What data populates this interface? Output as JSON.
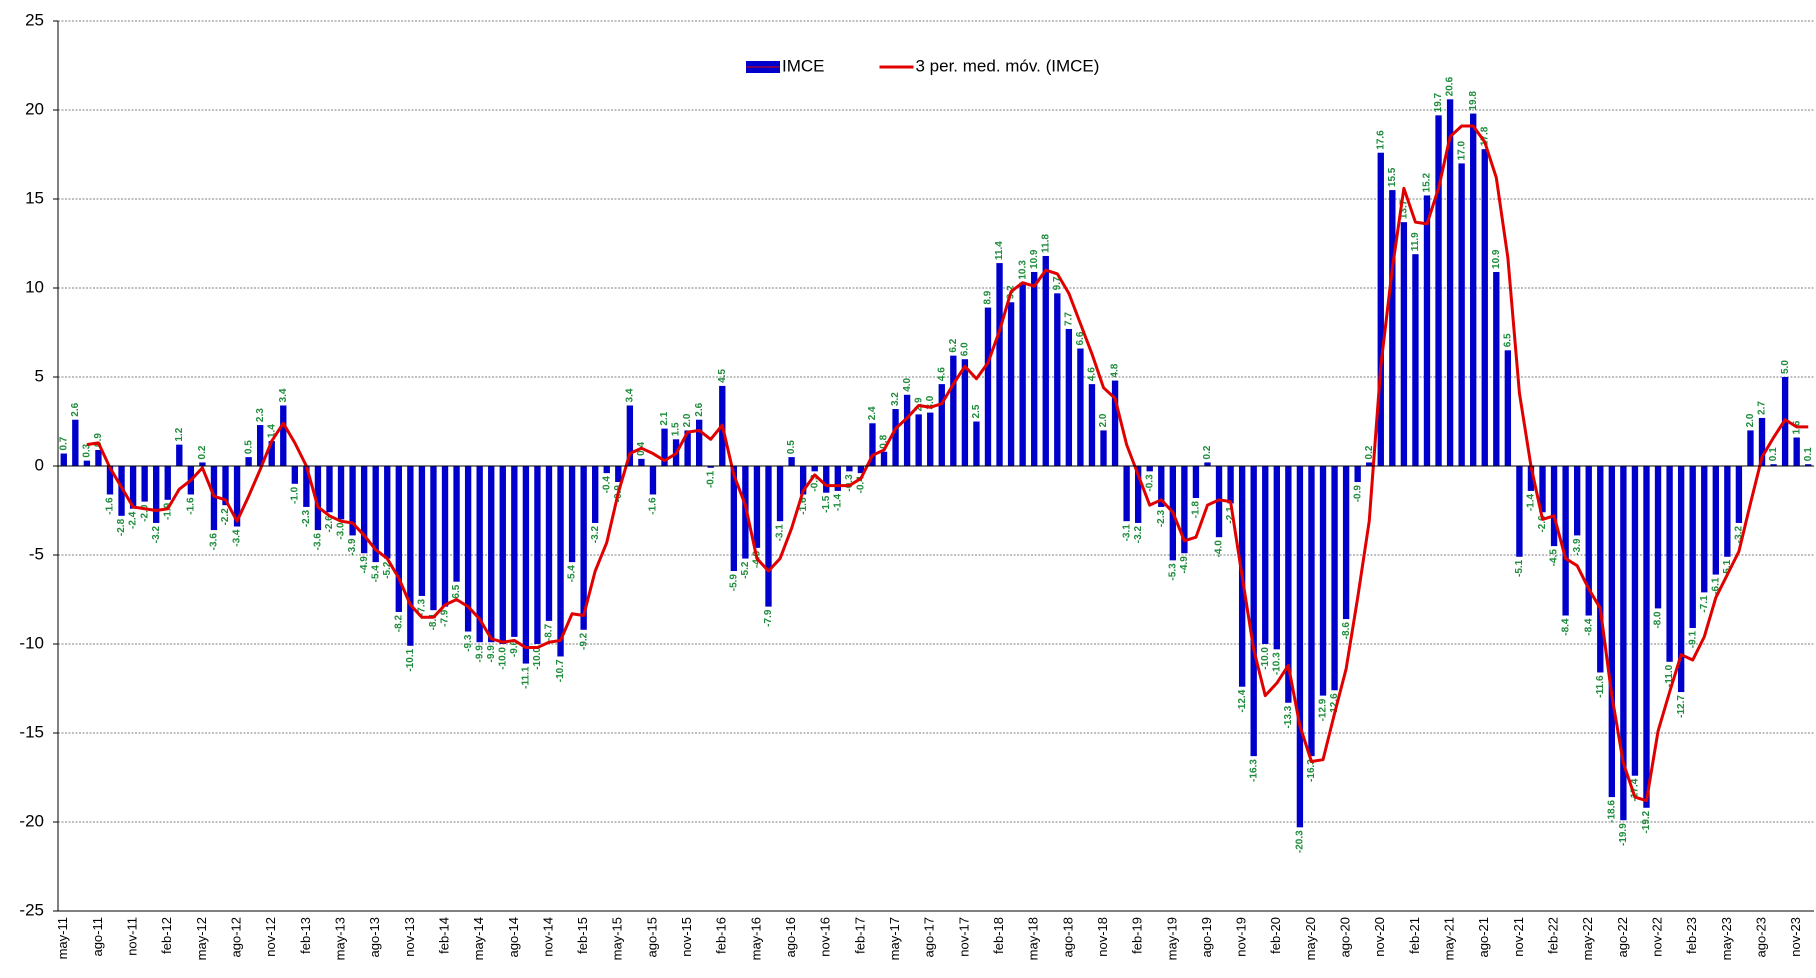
{
  "chart_data": {
    "type": "bar",
    "categories": [
      "may-11",
      null,
      null,
      "ago-11",
      null,
      null,
      "nov-11",
      null,
      null,
      "feb-12",
      null,
      null,
      "may-12",
      null,
      null,
      "ago-12",
      null,
      null,
      "nov-12",
      null,
      null,
      "feb-13",
      null,
      null,
      "may-13",
      null,
      null,
      "ago-13",
      null,
      null,
      "nov-13",
      null,
      null,
      "feb-14",
      null,
      null,
      "may-14",
      null,
      null,
      "ago-14",
      null,
      null,
      "nov-14",
      null,
      null,
      "feb-15",
      null,
      null,
      "may-15",
      null,
      null,
      "ago-15",
      null,
      null,
      "nov-15",
      null,
      null,
      "feb-16",
      null,
      null,
      "may-16",
      null,
      null,
      "ago-16",
      null,
      null,
      "nov-16",
      null,
      null,
      "feb-17",
      null,
      null,
      "may-17",
      null,
      null,
      "ago-17",
      null,
      null,
      "nov-17",
      null,
      null,
      "feb-18",
      null,
      null,
      "may-18",
      null,
      null,
      "ago-18",
      null,
      null,
      "nov-18",
      null,
      null,
      "feb-19",
      null,
      null,
      "may-19",
      null,
      null,
      "ago-19",
      null,
      null,
      "nov-19",
      null,
      null,
      "feb-20",
      null,
      null,
      "may-20",
      null,
      null,
      "ago-20",
      null,
      null,
      "nov-20",
      null,
      null,
      "feb-21",
      null,
      null,
      "may-21",
      null,
      null,
      "ago-21",
      null,
      null,
      "nov-21",
      null,
      null,
      "feb-22",
      null,
      null,
      "may-22",
      null,
      null,
      "ago-22",
      null,
      null,
      "nov-22",
      null,
      null,
      "feb-23",
      null,
      null,
      "may-23",
      null,
      null,
      "ago-23",
      null,
      null,
      "nov-23",
      null
    ],
    "series": [
      {
        "name": "IMCE",
        "color": "#0000cc",
        "values": [
          0.7,
          2.6,
          0.3,
          0.9,
          -1.6,
          -2.8,
          -2.4,
          -2.0,
          -3.2,
          -1.9,
          1.2,
          -1.6,
          0.2,
          -3.6,
          -2.2,
          -3.4,
          0.5,
          2.3,
          1.4,
          3.4,
          -1.0,
          -2.3,
          -3.6,
          -2.6,
          -3.0,
          -3.9,
          -4.9,
          -5.4,
          -5.2,
          -8.2,
          -10.1,
          -7.3,
          -8.1,
          -7.9,
          -6.5,
          -9.3,
          -9.9,
          -9.9,
          -10.0,
          -9.6,
          -11.1,
          -10.0,
          -8.7,
          -10.7,
          -5.4,
          -9.2,
          -3.2,
          -0.4,
          -0.9,
          3.4,
          0.4,
          -1.6,
          2.1,
          1.5,
          2.0,
          2.6,
          -0.1,
          4.5,
          -5.9,
          -5.2,
          -4.6,
          -7.9,
          -3.1,
          0.5,
          -1.6,
          -0.3,
          -1.5,
          -1.4,
          -0.3,
          -0.4,
          2.4,
          0.8,
          3.2,
          4.0,
          2.9,
          3.0,
          4.6,
          6.2,
          6.0,
          2.5,
          8.9,
          11.4,
          9.2,
          10.3,
          10.9,
          11.8,
          9.7,
          7.7,
          6.6,
          4.6,
          2.0,
          4.8,
          -3.1,
          -3.2,
          -0.3,
          -2.3,
          -5.3,
          -4.9,
          -1.8,
          0.2,
          -4.0,
          -2.1,
          -12.4,
          -16.3,
          -10.0,
          -10.3,
          -13.3,
          -20.3,
          -16.3,
          -12.9,
          -12.6,
          -8.6,
          -0.9,
          0.2,
          17.6,
          15.5,
          13.7,
          11.9,
          15.2,
          19.7,
          20.6,
          17.0,
          19.8,
          17.8,
          10.9,
          6.5,
          -5.1,
          -1.4,
          -2.6,
          -4.5,
          -8.4,
          -3.9,
          -8.4,
          -11.6,
          -18.6,
          -19.9,
          -17.4,
          -19.2,
          -8.0,
          -11.0,
          -12.7,
          -9.1,
          -7.1,
          -6.1,
          -5.1,
          -3.2,
          2.0,
          2.7,
          0.1,
          5.0,
          1.6,
          0.1
        ],
        "value_labels": [
          "0.7",
          "2.6",
          "0.3",
          "0.9",
          "-1.6",
          "-2.8",
          "-2.4",
          "-2.0",
          "-3.2",
          "-1.9",
          "1.2",
          "-1.6",
          "0.2",
          "-3.6",
          "-2.2",
          "-3.4",
          "0.5",
          "2.3",
          "1.4",
          "3.4",
          "-1.0",
          "-2.3",
          "-3.6",
          "-2.6",
          "-3.0",
          "-3.9",
          "-4.9",
          "-5.4",
          "-5.2",
          "-8.2",
          "-10.1",
          "-7.3",
          "-8.1",
          "-7.9",
          "-6.5",
          "-9.3",
          "-9.9",
          "-9.9",
          "-10.0",
          "-9.6",
          "-11.1",
          "-10.0",
          "-8.7",
          "-10.7",
          "-5.4",
          "-9.2",
          "-3.2",
          "-0.4",
          "-0.9",
          "3.4",
          "0.4",
          "-1.6",
          "2.1",
          "1.5",
          "2.0",
          "2.6",
          "-0.1",
          "4.5",
          "-5.9",
          "-5.2",
          "-4.6",
          "-7.9",
          "-3.1",
          "0.5",
          "-1.6",
          "-0.3",
          "-1.5",
          "-1.4",
          "-0.3",
          "-0.4",
          "2.4",
          "0.8",
          "3.2",
          "4.0",
          "2.9",
          "3.0",
          "4.6",
          "6.2",
          "6.0",
          "2.5",
          "8.9",
          "11.4",
          "9.2",
          "10.3",
          "10.9",
          "11.8",
          "9.7",
          "7.7",
          "6.6",
          "4.6",
          "2.0",
          "4.8",
          "-3.1",
          "-3.2",
          "-0.3",
          "-2.3",
          "-5.3",
          "-4.9",
          "-1.8",
          "0.2",
          "-4.0",
          "-2.1",
          "-12.4",
          "-16.3",
          "-10.0",
          "-10.3",
          "-13.3",
          "-20.3",
          "-16.3",
          "-12.9",
          "-12.6",
          "-8.6",
          "-0.9",
          "0.2",
          "17.6",
          "15.5",
          "13.7",
          "11.9",
          "15.2",
          "19.7",
          "20.6",
          "17.0",
          "19.8",
          "17.8",
          "10.9",
          "6.5",
          "-5.1",
          "-1.4",
          "-2.6",
          "-4.5",
          "-8.4",
          "-3.9",
          "-8.4",
          "-11.6",
          "-18.6",
          "-19.9",
          "-17.4",
          "-19.2",
          "-8.0",
          "-11.0",
          "-12.7",
          "-9.1",
          "-7.1",
          "-6.1",
          "-5.1",
          "-3.2",
          "2.0",
          "2.7",
          "0.1",
          "5.0",
          "1.6",
          "0.1"
        ],
        "label_color": "#1e8c3c"
      },
      {
        "name": "3 per. med. móv. (IMCE)",
        "type": "line",
        "color": "#e00000",
        "values": [
          null,
          null,
          1.2,
          1.3,
          -0.1,
          -1.2,
          -2.3,
          -2.4,
          -2.5,
          -2.4,
          -1.3,
          -0.8,
          -0.1,
          -1.7,
          -1.9,
          -3.1,
          -1.7,
          -0.2,
          1.4,
          2.4,
          1.3,
          0.0,
          -2.3,
          -2.8,
          -3.1,
          -3.2,
          -3.9,
          -4.7,
          -5.2,
          -6.3,
          -7.8,
          -8.5,
          -8.5,
          -7.8,
          -7.5,
          -7.9,
          -8.6,
          -9.7,
          -9.9,
          -9.8,
          -10.2,
          -10.2,
          -9.9,
          -9.8,
          -8.3,
          -8.4,
          -5.9,
          -4.3,
          -1.5,
          0.7,
          1.0,
          0.7,
          0.3,
          0.7,
          1.9,
          2.0,
          1.5,
          2.3,
          -0.5,
          -2.2,
          -5.2,
          -5.9,
          -5.2,
          -3.5,
          -1.4,
          -0.5,
          -1.1,
          -1.1,
          -1.1,
          -0.7,
          0.6,
          0.9,
          2.1,
          2.7,
          3.4,
          3.3,
          3.5,
          4.6,
          5.6,
          4.9,
          5.8,
          7.6,
          9.8,
          10.3,
          10.1,
          11.0,
          10.8,
          9.7,
          8.0,
          6.3,
          4.4,
          3.8,
          1.2,
          -0.5,
          -2.2,
          -1.9,
          -2.6,
          -4.2,
          -4.0,
          -2.2,
          -1.9,
          -2.0,
          -6.2,
          -10.3,
          -12.9,
          -12.2,
          -11.2,
          -14.6,
          -16.6,
          -16.5,
          -13.9,
          -11.4,
          -7.4,
          -3.1,
          5.6,
          11.1,
          15.6,
          13.7,
          13.6,
          15.6,
          18.5,
          19.1,
          19.1,
          18.2,
          16.2,
          11.7,
          4.1,
          0.0,
          -3.0,
          -2.8,
          -5.2,
          -5.6,
          -6.9,
          -8.0,
          -12.9,
          -16.7,
          -18.6,
          -18.8,
          -14.9,
          -12.7,
          -10.6,
          -10.9,
          -9.6,
          -7.4,
          -6.1,
          -4.8,
          -2.1,
          0.5,
          1.6,
          2.6,
          2.2,
          2.2
        ]
      }
    ],
    "ylim": [
      -25,
      25
    ],
    "yticks": [
      -25,
      -20,
      -15,
      -10,
      -5,
      0,
      5,
      10,
      15,
      20,
      25
    ],
    "grid": true,
    "legend": "upper center"
  }
}
